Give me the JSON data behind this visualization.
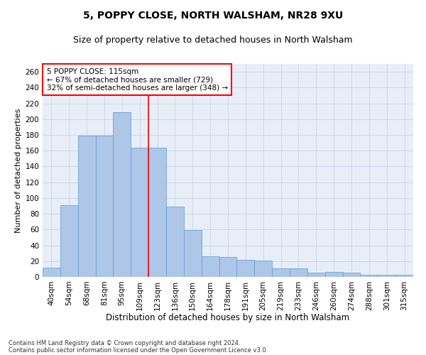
{
  "title1": "5, POPPY CLOSE, NORTH WALSHAM, NR28 9XU",
  "title2": "Size of property relative to detached houses in North Walsham",
  "xlabel": "Distribution of detached houses by size in North Walsham",
  "ylabel": "Number of detached properties",
  "footer1": "Contains HM Land Registry data © Crown copyright and database right 2024.",
  "footer2": "Contains public sector information licensed under the Open Government Licence v3.0.",
  "categories": [
    "40sqm",
    "54sqm",
    "68sqm",
    "81sqm",
    "95sqm",
    "109sqm",
    "123sqm",
    "136sqm",
    "150sqm",
    "164sqm",
    "178sqm",
    "191sqm",
    "205sqm",
    "219sqm",
    "233sqm",
    "246sqm",
    "260sqm",
    "274sqm",
    "288sqm",
    "301sqm",
    "315sqm"
  ],
  "values": [
    12,
    91,
    179,
    179,
    209,
    164,
    164,
    89,
    59,
    26,
    25,
    22,
    21,
    11,
    11,
    5,
    6,
    5,
    3,
    3,
    3
  ],
  "bar_color": "#aec6e8",
  "bar_edge_color": "#5b9bd5",
  "vline_x": 5.5,
  "vline_color": "red",
  "annotation_line1": "5 POPPY CLOSE: 115sqm",
  "annotation_line2": "← 67% of detached houses are smaller (729)",
  "annotation_line3": "32% of semi-detached houses are larger (348) →",
  "annotation_box_color": "red",
  "ylim": [
    0,
    270
  ],
  "yticks": [
    0,
    20,
    40,
    60,
    80,
    100,
    120,
    140,
    160,
    180,
    200,
    220,
    240,
    260
  ],
  "grid_color": "#c8d4e8",
  "background_color": "#e8eef8",
  "title1_fontsize": 10,
  "title2_fontsize": 9,
  "xlabel_fontsize": 8.5,
  "ylabel_fontsize": 8,
  "tick_fontsize": 7.5,
  "annotation_fontsize": 7.5,
  "footer_fontsize": 6,
  "bar_linewidth": 0.5
}
